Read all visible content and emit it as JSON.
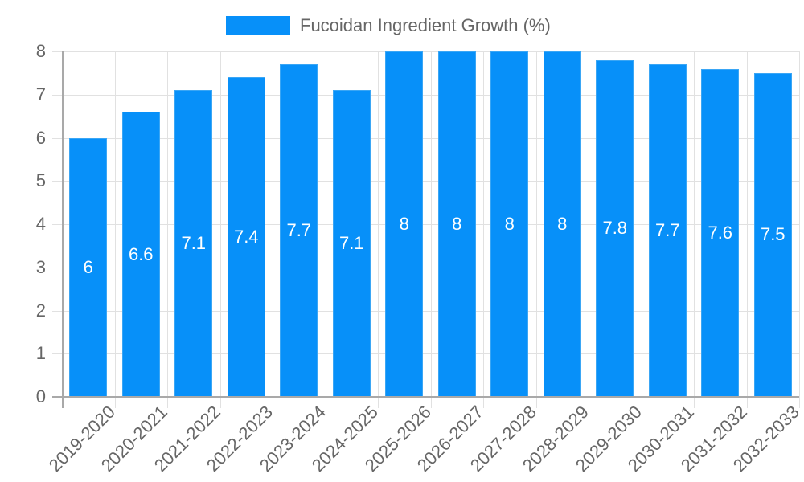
{
  "chart_data": {
    "type": "bar",
    "title": "",
    "xlabel": "",
    "ylabel": "",
    "legend": {
      "position": "top",
      "entries": [
        "Fucoidan Ingredient Growth (%)"
      ]
    },
    "grid": true,
    "ylim": [
      0,
      8
    ],
    "yticks": [
      "0",
      "1",
      "2",
      "3",
      "4",
      "5",
      "6",
      "7",
      "8"
    ],
    "categories": [
      "2019-2020",
      "2020-2021",
      "2021-2022",
      "2022-2023",
      "2023-2024",
      "2024-2025",
      "2025-2026",
      "2026-2027",
      "2027-2028",
      "2028-2029",
      "2029-2030",
      "2030-2031",
      "2031-2032",
      "2032-2033"
    ],
    "series": [
      {
        "name": "Fucoidan Ingredient Growth (%)",
        "color": "#0790F9",
        "values": [
          6,
          6.6,
          7.1,
          7.4,
          7.7,
          7.1,
          8,
          8,
          8,
          8,
          7.8,
          7.7,
          7.6,
          7.5
        ],
        "data_labels": [
          "6",
          "6.6",
          "7.1",
          "7.4",
          "7.7",
          "7.1",
          "8",
          "8",
          "8",
          "8",
          "7.8",
          "7.7",
          "7.6",
          "7.5"
        ]
      }
    ]
  },
  "legend": {
    "label": "Fucoidan Ingredient Growth (%)"
  }
}
